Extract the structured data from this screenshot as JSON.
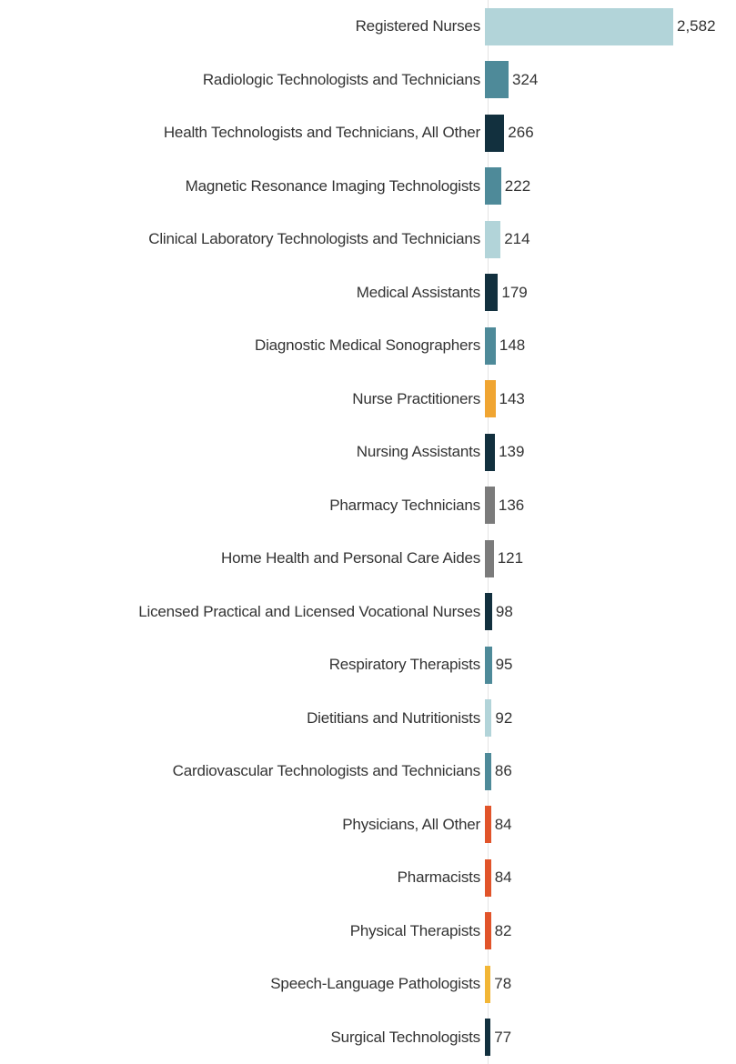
{
  "chart_data": {
    "type": "bar",
    "orientation": "horizontal",
    "title": "",
    "xlabel": "",
    "ylabel": "",
    "grid": false,
    "legend_position": "none",
    "xlim": [
      0,
      2582
    ],
    "categories": [
      "Registered Nurses",
      "Radiologic Technologists and Technicians",
      "Health Technologists and Technicians, All Other",
      "Magnetic Resonance Imaging Technologists",
      "Clinical Laboratory Technologists and Technicians",
      "Medical Assistants",
      "Diagnostic Medical Sonographers",
      "Nurse Practitioners",
      "Nursing Assistants",
      "Pharmacy Technicians",
      "Home Health and Personal Care Aides",
      "Licensed Practical and Licensed Vocational Nurses",
      "Respiratory Therapists",
      "Dietitians and Nutritionists",
      "Cardiovascular Technologists and Technicians",
      "Physicians, All Other",
      "Pharmacists",
      "Physical Therapists",
      "Speech-Language Pathologists",
      "Surgical Technologists"
    ],
    "values": [
      2582,
      324,
      266,
      222,
      214,
      179,
      148,
      143,
      139,
      136,
      121,
      98,
      95,
      92,
      86,
      84,
      84,
      82,
      78,
      77
    ],
    "value_labels": [
      "2,582",
      "324",
      "266",
      "222",
      "214",
      "179",
      "148",
      "143",
      "139",
      "136",
      "121",
      "98",
      "95",
      "92",
      "86",
      "84",
      "84",
      "82",
      "78",
      "77"
    ],
    "bar_colors": [
      "#b2d4d9",
      "#4e8a99",
      "#12303e",
      "#4e8a99",
      "#b2d4d9",
      "#12303e",
      "#4e8a99",
      "#f0a532",
      "#12303e",
      "#7b7b7b",
      "#7b7b7b",
      "#12303e",
      "#4e8a99",
      "#b2d4d9",
      "#4e8a99",
      "#e1542a",
      "#e1542a",
      "#e1542a",
      "#f2b636",
      "#12303e"
    ],
    "palette": {
      "light_blue": "#b2d4d9",
      "teal": "#4e8a99",
      "navy": "#12303e",
      "amber": "#f0a532",
      "gray": "#7b7b7b",
      "orange_red": "#e1542a",
      "yellow": "#f2b636"
    },
    "text_color": "#333333",
    "axis_line_color": "#e3e3e3"
  }
}
